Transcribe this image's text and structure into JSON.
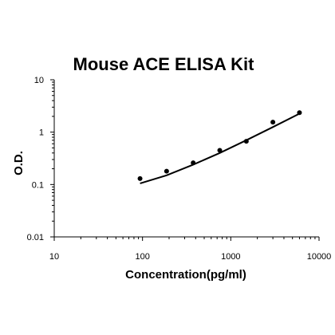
{
  "chart_data": {
    "type": "scatter",
    "title": "Mouse ACE ELISA Kit",
    "xlabel": "Concentration(pg/ml)",
    "ylabel": "O.D.",
    "xscale": "log",
    "yscale": "log",
    "xlim": [
      10,
      10000
    ],
    "ylim": [
      0.01,
      10
    ],
    "x_ticks": [
      "10",
      "100",
      "1000",
      "10000"
    ],
    "y_ticks": [
      "0.01",
      "0.1",
      "1",
      "10"
    ],
    "grid": false,
    "legend": "none",
    "series": [
      {
        "marker": "dot",
        "x": [
          93.75,
          187.5,
          375,
          750,
          1500,
          3000,
          6000
        ],
        "y": [
          0.13,
          0.18,
          0.26,
          0.45,
          0.67,
          1.55,
          2.35
        ]
      }
    ],
    "fit_curve": {
      "x": [
        93.75,
        187.5,
        375,
        750,
        1500,
        3000,
        6000
      ],
      "y": [
        0.105,
        0.15,
        0.24,
        0.4,
        0.7,
        1.25,
        2.25
      ]
    },
    "colors": {
      "marker": "#000000",
      "line": "#000000",
      "axis": "#000000"
    }
  }
}
